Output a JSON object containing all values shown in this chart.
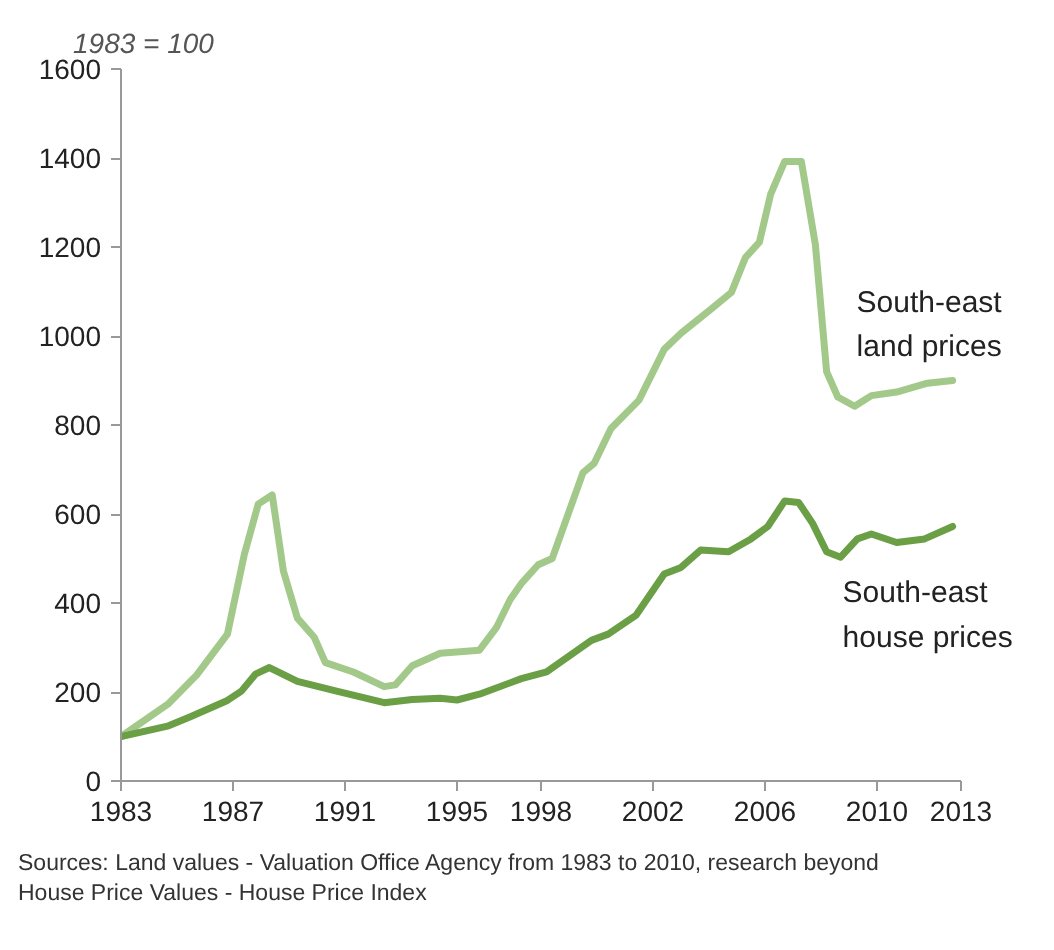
{
  "chart_data": {
    "type": "line",
    "ylabel": "1983 = 100",
    "xlim": [
      1983,
      2013
    ],
    "xticks": [
      1983,
      1987,
      1991,
      1995,
      1998,
      2002,
      2006,
      2010,
      2013
    ],
    "ylim": [
      0,
      1600
    ],
    "yticks": [
      0,
      200,
      400,
      600,
      800,
      1000,
      1200,
      1400,
      1600
    ],
    "grid": false,
    "legend": false,
    "marker": "none",
    "line_style": "solid",
    "series": [
      {
        "name": "South-east land prices",
        "color": "#a3c98a",
        "x": [
          1983.0,
          1984.7,
          1985.7,
          1986.8,
          1987.4,
          1987.9,
          1988.4,
          1988.8,
          1989.3,
          1989.9,
          1990.3,
          1991.3,
          1992.4,
          1992.8,
          1993.4,
          1994.4,
          1995.8,
          1996.4,
          1996.9,
          1997.3,
          1997.9,
          1998.4,
          1999.5,
          1999.9,
          2000.5,
          2001.5,
          2002.4,
          2003.0,
          2004.1,
          2004.8,
          2005.3,
          2005.8,
          2006.2,
          2006.7,
          2007.3,
          2007.8,
          2008.2,
          2008.6,
          2009.2,
          2009.8,
          2010.7,
          2011.8,
          2012.7
        ],
        "values": [
          100,
          174,
          238,
          330,
          508,
          622,
          643,
          472,
          366,
          323,
          266,
          245,
          212,
          216,
          259,
          287,
          294,
          344,
          408,
          444,
          486,
          500,
          693,
          714,
          792,
          856,
          970,
          1006,
          1062,
          1098,
          1176,
          1211,
          1318,
          1392,
          1392,
          1205,
          920,
          863,
          842,
          866,
          874,
          894,
          900
        ]
      },
      {
        "name": "South-east house prices",
        "color": "#6a9f45",
        "x": [
          1983.0,
          1984.7,
          1985.5,
          1986.8,
          1987.3,
          1987.8,
          1988.3,
          1989.3,
          1990.7,
          1992.4,
          1993.4,
          1994.4,
          1995.0,
          1995.8,
          1997.3,
          1998.2,
          1999.8,
          2000.4,
          2001.4,
          2002.4,
          2003.0,
          2003.7,
          2004.7,
          2005.5,
          2006.1,
          2006.7,
          2007.2,
          2007.7,
          2008.2,
          2008.7,
          2009.3,
          2009.8,
          2010.7,
          2011.7,
          2012.7
        ],
        "values": [
          100,
          124,
          145,
          181,
          202,
          240,
          255,
          224,
          202,
          176,
          183,
          186,
          182,
          195,
          230,
          245,
          316,
          330,
          373,
          465,
          480,
          519,
          515,
          544,
          572,
          629,
          626,
          579,
          515,
          503,
          544,
          555,
          536,
          544,
          572
        ]
      }
    ],
    "annotations": [
      "Sources: Land values - Valuation Office Agency from 1983 to 2010, research beyond",
      "House Price Values - House Price Index"
    ]
  }
}
